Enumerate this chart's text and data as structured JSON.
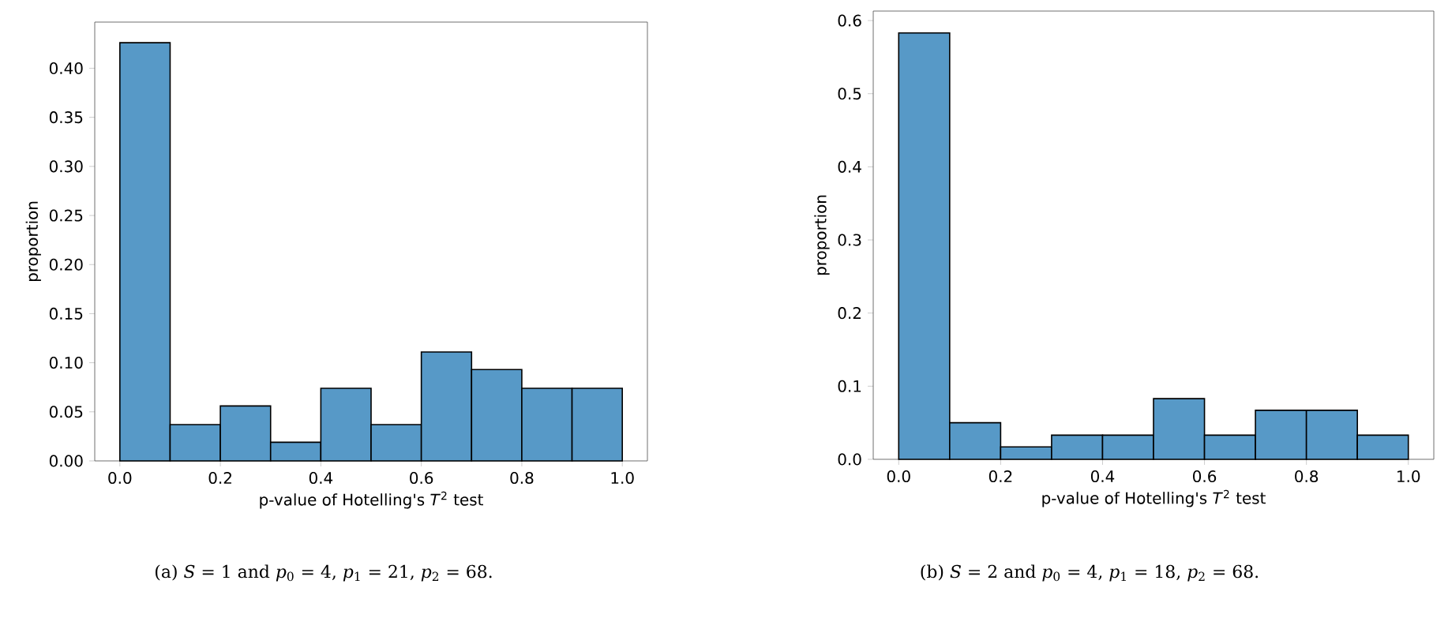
{
  "chart_data": [
    {
      "type": "histogram",
      "xlabel": "p-value of Hotelling's *T*$^{2}$ test",
      "ylabel": "proportion",
      "bins": [
        0.0,
        0.1,
        0.2,
        0.3,
        0.4,
        0.5,
        0.6,
        0.7,
        0.8,
        0.9,
        1.0
      ],
      "values": [
        0.426,
        0.037,
        0.056,
        0.019,
        0.074,
        0.037,
        0.111,
        0.093,
        0.074,
        0.074
      ],
      "color": "#5799c7",
      "xlim": [
        -0.05,
        1.05
      ],
      "ylim": [
        0,
        0.447
      ],
      "xticks": [
        {
          "value": 0,
          "label": "0.0"
        },
        {
          "value": 0.2,
          "label": "0.2"
        },
        {
          "value": 0.4,
          "label": "0.4"
        },
        {
          "value": 0.6,
          "label": "0.6"
        },
        {
          "value": 0.8,
          "label": "0.8"
        },
        {
          "value": 1,
          "label": "1.0"
        }
      ],
      "yticks": [
        {
          "value": 0,
          "label": "0.00"
        },
        {
          "value": 0.05,
          "label": "0.05"
        },
        {
          "value": 0.1,
          "label": "0.10"
        },
        {
          "value": 0.15,
          "label": "0.15"
        },
        {
          "value": 0.2,
          "label": "0.20"
        },
        {
          "value": 0.25,
          "label": "0.25"
        },
        {
          "value": 0.3,
          "label": "0.30"
        },
        {
          "value": 0.35,
          "label": "0.35"
        },
        {
          "value": 0.4,
          "label": "0.40"
        }
      ],
      "annotations": [
        "(a) *S* = 1 and *p*$_{0}$ = 4, *p*$_{1}$ = 21, *p*$_{2}$ = 68."
      ]
    },
    {
      "type": "histogram",
      "xlabel": "p-value of Hotelling's *T*$^{2}$ test",
      "ylabel": "proportion",
      "bins": [
        0.0,
        0.1,
        0.2,
        0.3,
        0.4,
        0.5,
        0.6,
        0.7,
        0.8,
        0.9,
        1.0
      ],
      "values": [
        0.583,
        0.05,
        0.017,
        0.033,
        0.033,
        0.083,
        0.033,
        0.067,
        0.067,
        0.033
      ],
      "color": "#5799c7",
      "xlim": [
        -0.05,
        1.05
      ],
      "ylim": [
        0,
        0.613
      ],
      "xticks": [
        {
          "value": 0,
          "label": "0.0"
        },
        {
          "value": 0.2,
          "label": "0.2"
        },
        {
          "value": 0.4,
          "label": "0.4"
        },
        {
          "value": 0.6,
          "label": "0.6"
        },
        {
          "value": 0.8,
          "label": "0.8"
        },
        {
          "value": 1,
          "label": "1.0"
        }
      ],
      "yticks": [
        {
          "value": 0,
          "label": "0.0"
        },
        {
          "value": 0.1,
          "label": "0.1"
        },
        {
          "value": 0.2,
          "label": "0.2"
        },
        {
          "value": 0.3,
          "label": "0.3"
        },
        {
          "value": 0.4,
          "label": "0.4"
        },
        {
          "value": 0.5,
          "label": "0.5"
        },
        {
          "value": 0.6,
          "label": "0.6"
        }
      ],
      "annotations": [
        "(b) *S* = 2 and *p*$_{0}$ = 4, *p*$_{1}$ = 18, *p*$_{2}$ = 68."
      ]
    }
  ]
}
